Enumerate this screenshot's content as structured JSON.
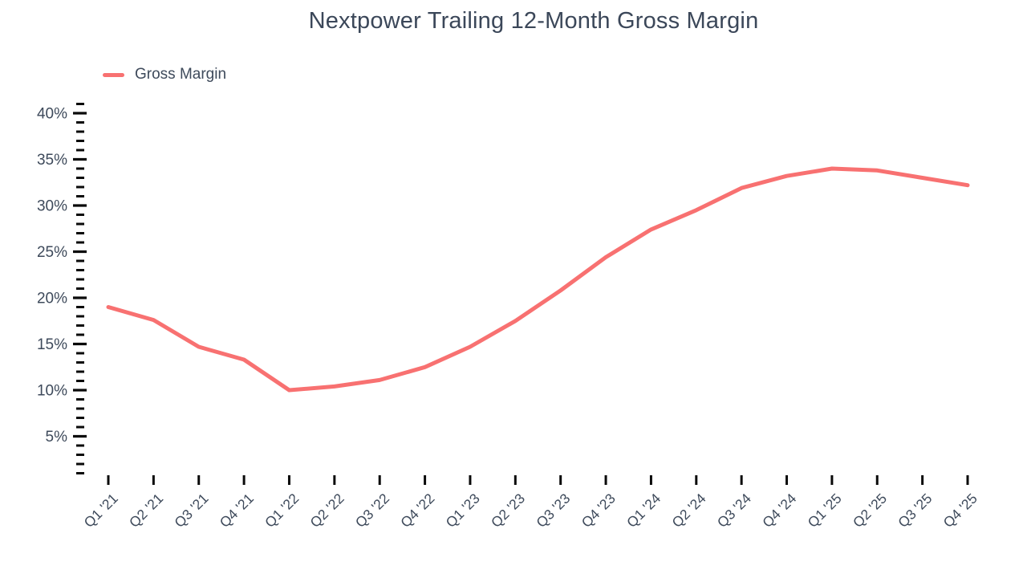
{
  "chart_data": {
    "type": "line",
    "title": "Nextpower Trailing 12-Month Gross Margin",
    "legend": [
      "Gross Margin"
    ],
    "categories": [
      "Q1 '21",
      "Q2 '21",
      "Q3 '21",
      "Q4 '21",
      "Q1 '22",
      "Q2 '22",
      "Q3 '22",
      "Q4 '22",
      "Q1 '23",
      "Q2 '23",
      "Q3 '23",
      "Q4 '23",
      "Q1 '24",
      "Q2 '24",
      "Q3 '24",
      "Q4 '24",
      "Q1 '25",
      "Q2 '25",
      "Q3 '25",
      "Q4 '25"
    ],
    "series": [
      {
        "name": "Gross Margin",
        "values": [
          19.0,
          17.6,
          14.7,
          13.3,
          10.0,
          10.4,
          11.1,
          12.5,
          14.7,
          17.5,
          20.8,
          24.4,
          27.4,
          29.5,
          31.9,
          33.2,
          34.0,
          33.8,
          33.0,
          32.2
        ]
      }
    ],
    "xlabel": "",
    "ylabel": "",
    "ylim": [
      0,
      41
    ],
    "yticks_major": [
      5,
      10,
      15,
      20,
      25,
      30,
      35,
      40
    ],
    "y_minor_step": 1,
    "ytick_suffix": "%",
    "grid": false,
    "legend_position": "top-left",
    "colors": {
      "line": "#f87171",
      "text": "#3e4a5b",
      "title": "#3b4759",
      "tick": "#0a0a0a",
      "background": "#ffffff"
    }
  }
}
